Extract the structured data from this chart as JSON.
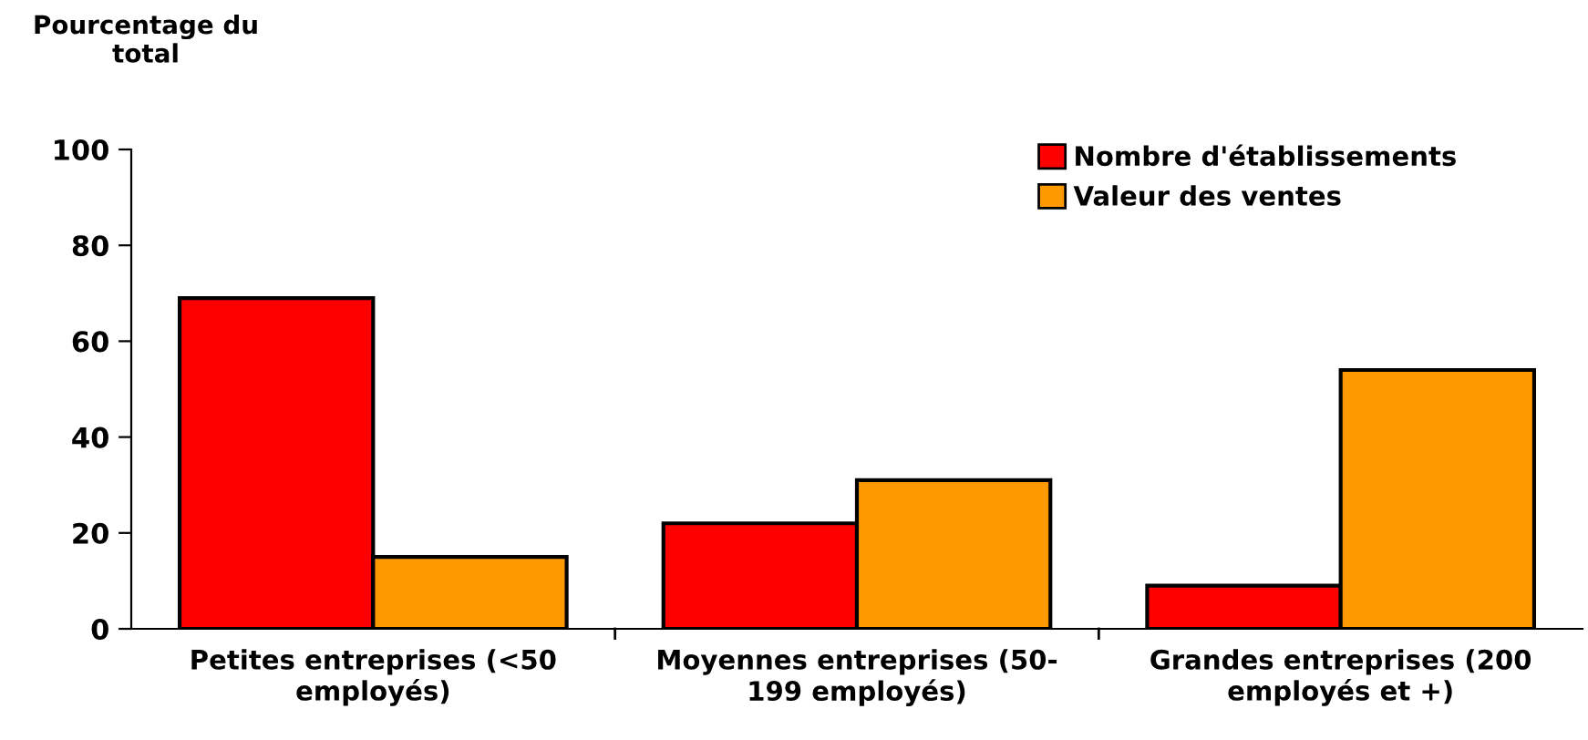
{
  "chart_data": {
    "type": "bar",
    "ylabel": "Pourcentage du\ntotal",
    "categories": [
      "Petites entreprises (<50\nemployés)",
      "Moyennes entreprises (50-\n199 employés)",
      "Grandes entreprises (200\nemployés et +)"
    ],
    "series": [
      {
        "name": "Nombre d'établissements",
        "color": "#ff0000",
        "values": [
          69,
          22,
          9
        ]
      },
      {
        "name": "Valeur des ventes",
        "color": "#ff9900",
        "values": [
          15,
          31,
          54
        ]
      }
    ],
    "ylim": [
      0,
      100
    ],
    "yticks": [
      0,
      20,
      40,
      60,
      80,
      100
    ],
    "grid": false,
    "legend": "top right"
  }
}
